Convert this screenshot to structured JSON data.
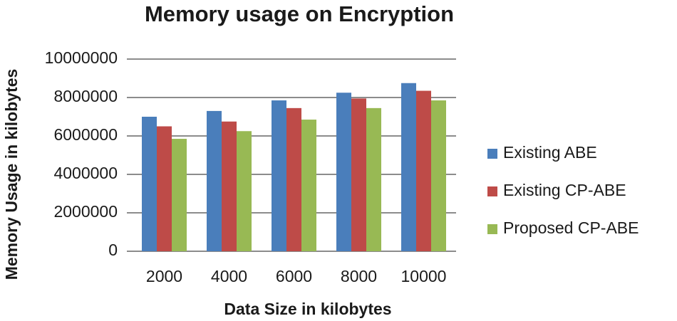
{
  "chart_data": {
    "type": "bar",
    "title": "Memory usage on Encryption",
    "x_label": "Data Size in kilobytes",
    "y_label": "Memory Usage in kilobytes",
    "categories": [
      "2000",
      "4000",
      "6000",
      "8000",
      "10000"
    ],
    "series": [
      {
        "name": "Existing ABE",
        "color": "#4a7ebb",
        "values": [
          7000000,
          7300000,
          7850000,
          8250000,
          8750000
        ]
      },
      {
        "name": "Existing CP-ABE",
        "color": "#be4b48",
        "values": [
          6500000,
          6750000,
          7450000,
          7950000,
          8350000
        ]
      },
      {
        "name": "Proposed CP-ABE",
        "color": "#98b954",
        "values": [
          5850000,
          6250000,
          6850000,
          7450000,
          7850000
        ]
      }
    ],
    "ylim": [
      0,
      10000000
    ],
    "yticks": [
      0,
      2000000,
      4000000,
      6000000,
      8000000,
      10000000
    ],
    "grid": true,
    "legend": "right"
  }
}
